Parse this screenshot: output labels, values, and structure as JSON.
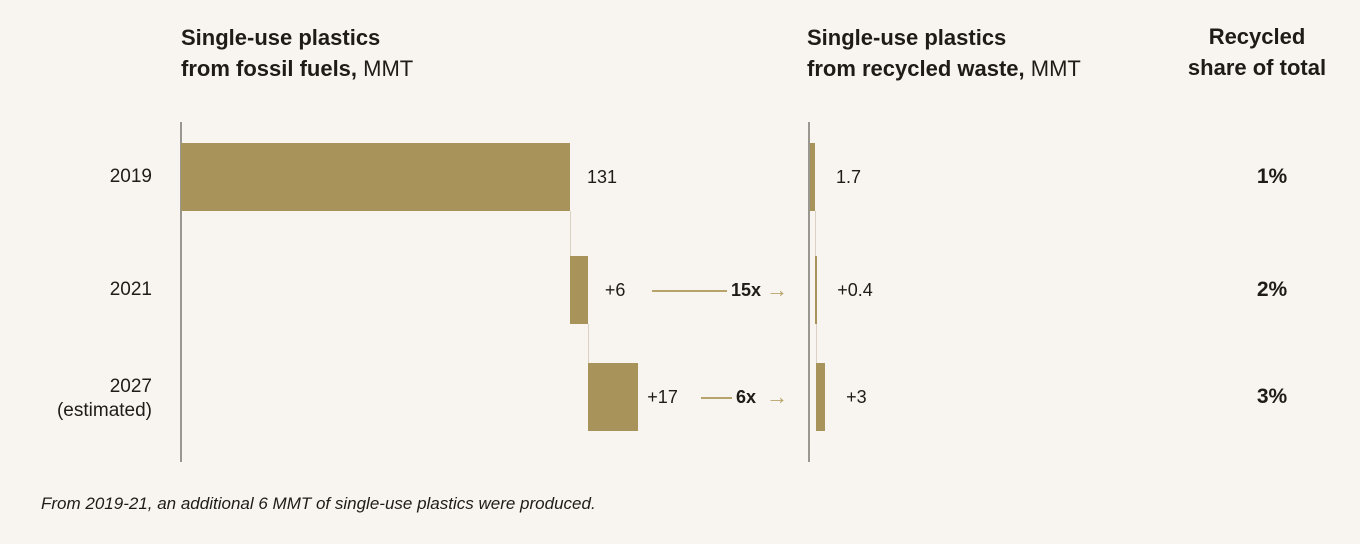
{
  "headers": {
    "fossil_bold_line1": "Single-use plastics",
    "fossil_bold_line2": "from fossil fuels,",
    "fossil_unit": " MMT",
    "recycled_bold_line1": "Single-use plastics",
    "recycled_bold_line2": "from recycled waste,",
    "recycled_unit": " MMT",
    "share_line1": "Recycled",
    "share_line2": "share of total"
  },
  "chart_data": {
    "type": "bar",
    "subtype": "waterfall",
    "categories": [
      "2019",
      "2021",
      "2027"
    ],
    "category_notes": [
      "",
      "",
      "(estimated)"
    ],
    "series": [
      {
        "name": "Single-use plastics from fossil fuels, MMT",
        "values": [
          131,
          6,
          17
        ],
        "labels": [
          "131",
          "+6",
          "+17"
        ]
      },
      {
        "name": "Single-use plastics from recycled waste, MMT",
        "values": [
          1.7,
          0.4,
          3
        ],
        "labels": [
          "1.7",
          "+0.4",
          "+3"
        ]
      }
    ],
    "multipliers": [
      "",
      "15x",
      "6x"
    ],
    "recycled_share": [
      "1%",
      "2%",
      "3%"
    ],
    "fossil_xlim": [
      0,
      154
    ],
    "recycled_xlim": [
      0,
      154
    ],
    "colors": {
      "bar": "#a8945a",
      "arrow": "#b8a36a",
      "axis": "#9a9690",
      "background": "#f8f4ef"
    },
    "arrow_icon": "arrow-right-icon"
  },
  "footnote": "From 2019-21, an additional 6 MMT of single-use plastics were produced."
}
